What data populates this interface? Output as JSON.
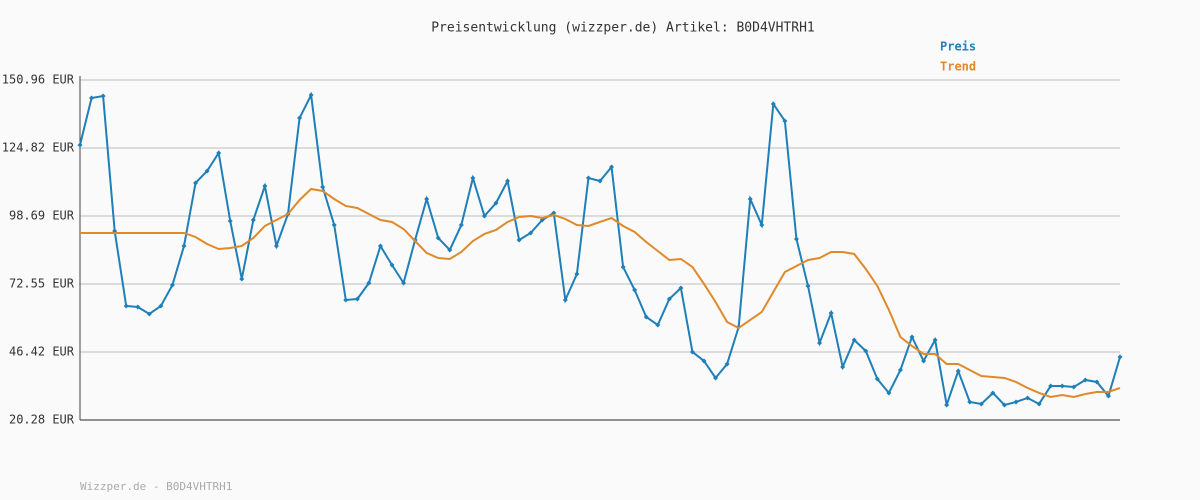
{
  "chart_data": {
    "type": "line",
    "title": "Preisentwicklung (wizzper.de) Artikel: B0D4VHTRH1",
    "footer": "Wizzper.de - B0D4VHTRH1",
    "ylim": [
      20.28,
      150.96
    ],
    "yticks": [
      {
        "value": 20.28,
        "label": "20.28 EUR"
      },
      {
        "value": 46.42,
        "label": "46.42 EUR"
      },
      {
        "value": 72.55,
        "label": "72.55 EUR"
      },
      {
        "value": 98.69,
        "label": "98.69 EUR"
      },
      {
        "value": 124.82,
        "label": "124.82 EUR"
      },
      {
        "value": 150.96,
        "label": "150.96 EUR"
      }
    ],
    "grid": true,
    "legend": "top-right",
    "series": [
      {
        "name": "Preis",
        "color": "#1f7fb8",
        "markers": true,
        "values": [
          125.98,
          144.04,
          144.81,
          92.93,
          64.1,
          63.72,
          61.03,
          64.1,
          72.17,
          87.16,
          111.38,
          115.99,
          122.9,
          96.77,
          74.48,
          97.16,
          110.22,
          87.16,
          99.46,
          136.36,
          145.2,
          109.84,
          95.23,
          66.41,
          66.79,
          72.94,
          87.16,
          79.86,
          72.94,
          89.47,
          105.23,
          90.24,
          85.63,
          95.23,
          113.3,
          98.69,
          103.69,
          112.14,
          89.47,
          92.16,
          97.16,
          99.85,
          66.41,
          76.4,
          113.3,
          112.14,
          117.52,
          79.09,
          70.25,
          59.88,
          56.8,
          66.79,
          71.02,
          46.43,
          42.97,
          36.43,
          41.81,
          56.03,
          105.23,
          95.23,
          141.74,
          135.2,
          89.85,
          71.79,
          49.88,
          61.41,
          40.66,
          51.04,
          46.81,
          36.05,
          30.67,
          39.51,
          52.19,
          42.97,
          51.04,
          26.06,
          39.12,
          27.21,
          26.44,
          30.67,
          26.06,
          27.21,
          28.75,
          26.44,
          33.36,
          33.36,
          32.97,
          35.66,
          34.9,
          29.51,
          44.5
        ]
      },
      {
        "name": "Trend",
        "color": "#e0892a",
        "markers": false,
        "values": [
          92.16,
          92.16,
          92.16,
          92.16,
          92.16,
          92.16,
          92.16,
          92.16,
          92.16,
          92.16,
          90.62,
          87.93,
          86.01,
          86.39,
          87.16,
          90.24,
          94.85,
          97.16,
          99.46,
          104.84,
          109.07,
          108.3,
          105.23,
          102.54,
          101.77,
          99.46,
          97.16,
          96.39,
          93.7,
          89.08,
          84.47,
          82.55,
          82.17,
          84.86,
          89.08,
          91.78,
          93.31,
          96.39,
          98.31,
          98.69,
          97.92,
          99.08,
          97.54,
          95.23,
          94.85,
          96.39,
          97.92,
          94.85,
          92.54,
          88.7,
          85.24,
          81.78,
          82.17,
          79.09,
          72.56,
          65.64,
          57.95,
          55.65,
          58.72,
          61.8,
          69.48,
          77.17,
          79.48,
          81.78,
          82.55,
          84.86,
          84.86,
          84.09,
          78.32,
          71.79,
          62.57,
          52.19,
          48.73,
          45.66,
          45.66,
          41.81,
          41.81,
          39.51,
          37.2,
          36.82,
          36.43,
          34.9,
          32.59,
          30.67,
          29.13,
          29.9,
          29.13,
          30.28,
          31.05,
          31.05,
          32.59
        ]
      }
    ]
  }
}
